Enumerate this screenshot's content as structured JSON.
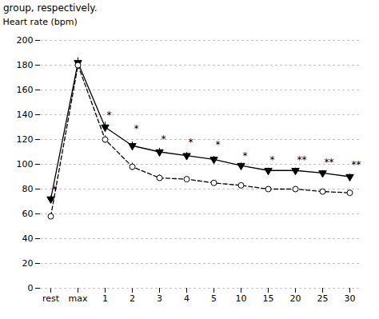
{
  "chart_data": {
    "type": "line",
    "title": "group, respectively.",
    "ylabel": "Heart rate (bpm)",
    "categories": [
      "rest",
      "max",
      "1",
      "2",
      "3",
      "4",
      "5",
      "10",
      "15",
      "20",
      "25",
      "30"
    ],
    "series": [
      {
        "color": "black",
        "marker": "triangle_down",
        "line_style": "solid",
        "values": [
          72,
          182,
          130,
          115,
          110,
          107,
          104,
          99,
          95,
          95,
          93,
          90
        ],
        "errors": [
          2.5,
          4,
          4,
          3,
          3,
          2.5,
          2.5,
          2,
          2,
          2,
          2,
          2
        ]
      },
      {
        "color": "black",
        "marker": "circle_open",
        "line_style": "dashed",
        "values": [
          58,
          180,
          120,
          98,
          89,
          88,
          85,
          83,
          80,
          80,
          78,
          77
        ],
        "errors": [
          2,
          3,
          3,
          3,
          2.5,
          2,
          2,
          2,
          2,
          2,
          2,
          2
        ]
      }
    ],
    "annotations": [
      {
        "category": "rest",
        "y": 77,
        "text": "*"
      },
      {
        "category": "1",
        "y": 137,
        "text": "*"
      },
      {
        "category": "2",
        "y": 126,
        "text": "*"
      },
      {
        "category": "3",
        "y": 118,
        "text": "*"
      },
      {
        "category": "4",
        "y": 115,
        "text": "*"
      },
      {
        "category": "5",
        "y": 113,
        "text": "*"
      },
      {
        "category": "10",
        "y": 104,
        "text": "*"
      },
      {
        "category": "15",
        "y": 101,
        "text": "*"
      },
      {
        "category": "20",
        "y": 101,
        "text": "**"
      },
      {
        "category": "25",
        "y": 99,
        "text": "**"
      },
      {
        "category": "30",
        "y": 97,
        "text": "**"
      }
    ],
    "ylim": [
      0,
      200
    ],
    "yticks": [
      0,
      20,
      40,
      60,
      80,
      100,
      120,
      140,
      160,
      180,
      200
    ],
    "grid": true
  }
}
